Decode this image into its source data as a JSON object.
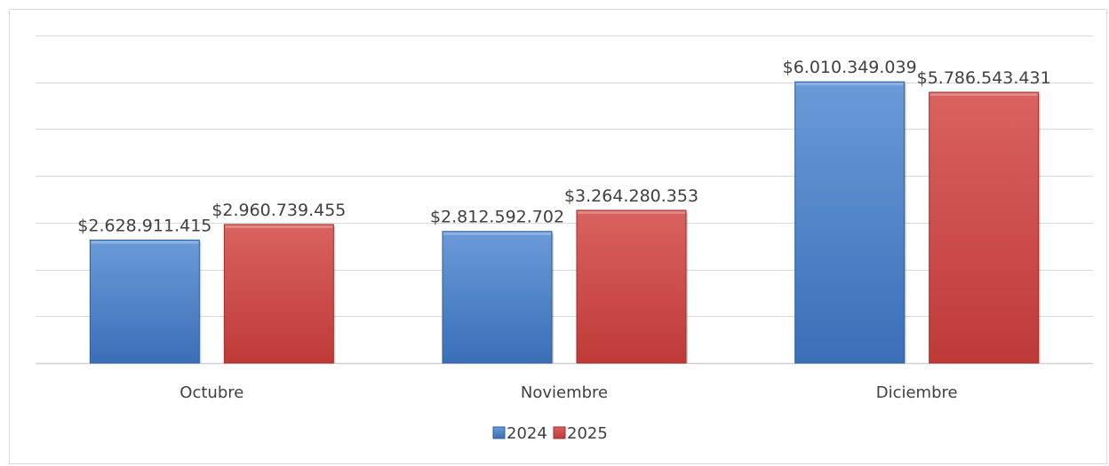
{
  "chart_data": {
    "type": "bar",
    "title": "",
    "xlabel": "",
    "ylabel": "",
    "categories": [
      "Octubre",
      "Noviembre",
      "Diciembre"
    ],
    "series": [
      {
        "name": "2024",
        "color": "#4a7cc4",
        "values": [
          2628911415,
          2812592702,
          6010349039
        ],
        "labels": [
          "$2.628.911.415",
          "$2.812.592.702",
          "$6.010.349.039"
        ]
      },
      {
        "name": "2025",
        "color": "#c9413f",
        "values": [
          2960739455,
          3264280353,
          5786543431
        ],
        "labels": [
          "$2.960.739.455",
          "$3.264.280.353",
          "$5.786.543.431"
        ]
      }
    ],
    "ylim": [
      0,
      7000000000
    ],
    "y_major_unit": 1000000000,
    "grid": true,
    "y_axis_labels_visible": false,
    "legend_position": "bottom"
  }
}
